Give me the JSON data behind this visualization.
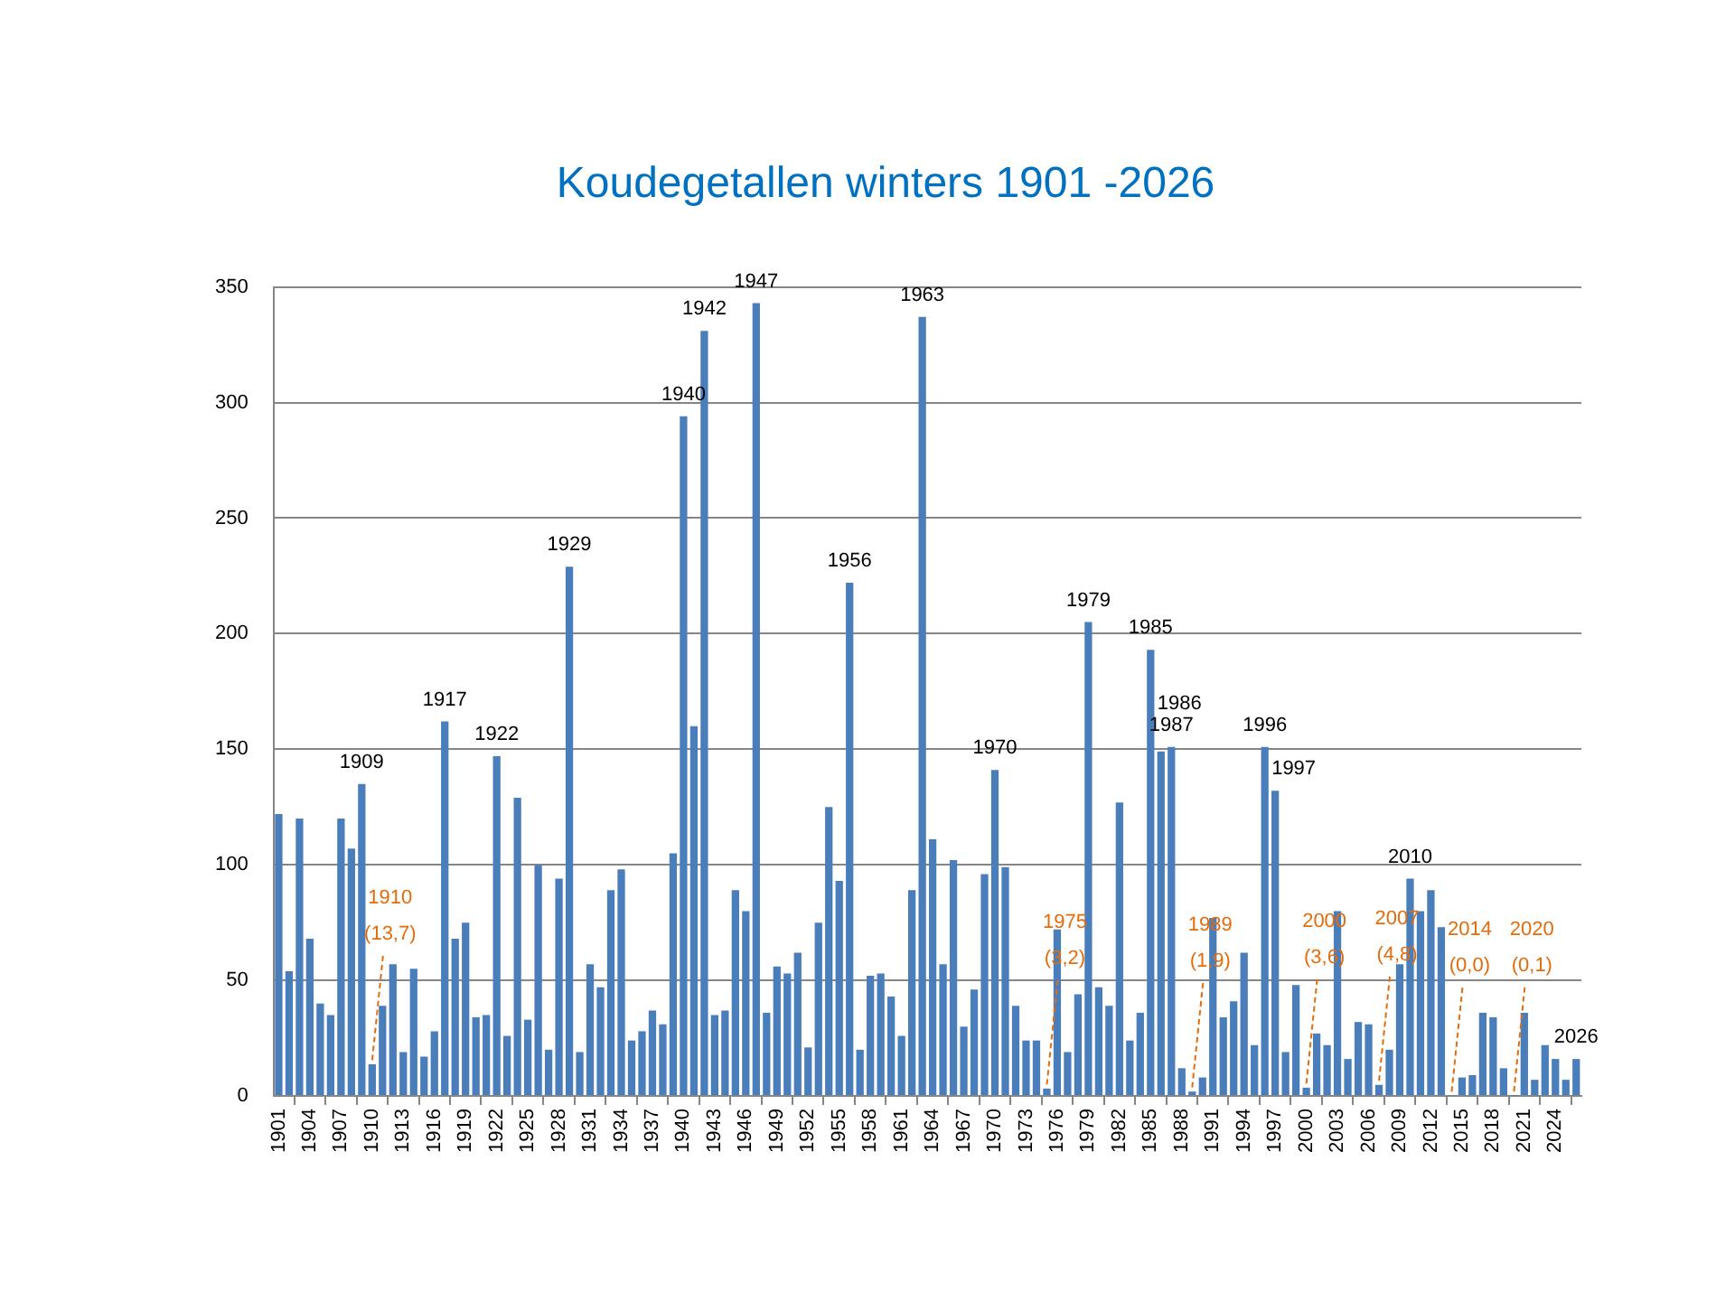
{
  "chart_data": {
    "type": "bar",
    "title": "Koudegetallen winters 1901 -2026",
    "x": [
      1901,
      1902,
      1903,
      1904,
      1905,
      1906,
      1907,
      1908,
      1909,
      1910,
      1911,
      1912,
      1913,
      1914,
      1915,
      1916,
      1917,
      1918,
      1919,
      1920,
      1921,
      1922,
      1923,
      1924,
      1925,
      1926,
      1927,
      1928,
      1929,
      1930,
      1931,
      1932,
      1933,
      1934,
      1935,
      1936,
      1937,
      1938,
      1939,
      1940,
      1941,
      1942,
      1943,
      1944,
      1945,
      1946,
      1947,
      1948,
      1949,
      1950,
      1951,
      1952,
      1953,
      1954,
      1955,
      1956,
      1957,
      1958,
      1959,
      1960,
      1961,
      1962,
      1963,
      1964,
      1965,
      1966,
      1967,
      1968,
      1969,
      1970,
      1971,
      1972,
      1973,
      1974,
      1975,
      1976,
      1977,
      1978,
      1979,
      1980,
      1981,
      1982,
      1983,
      1984,
      1985,
      1986,
      1987,
      1988,
      1989,
      1990,
      1991,
      1992,
      1993,
      1994,
      1995,
      1996,
      1997,
      1998,
      1999,
      2000,
      2001,
      2002,
      2003,
      2004,
      2005,
      2006,
      2007,
      2008,
      2009,
      2010,
      2011,
      2012,
      2013,
      2014,
      2015,
      2016,
      2017,
      2018,
      2019,
      2020,
      2021,
      2022,
      2023,
      2024,
      2025,
      2026
    ],
    "values": [
      122,
      54,
      120,
      68,
      40,
      35,
      120,
      107,
      135,
      13.7,
      39,
      57,
      19,
      55,
      17,
      28,
      162,
      68,
      75,
      34,
      35,
      147,
      26,
      129,
      33,
      100,
      20,
      94,
      229,
      19,
      57,
      47,
      89,
      98,
      24,
      28,
      37,
      31,
      105,
      294,
      160,
      331,
      35,
      37,
      89,
      80,
      343,
      36,
      56,
      53,
      62,
      21,
      75,
      125,
      93,
      222,
      20,
      52,
      53,
      43,
      26,
      89,
      337,
      111,
      57,
      102,
      30,
      46,
      96,
      141,
      99,
      39,
      24,
      24,
      3.2,
      72,
      19,
      44,
      205,
      47,
      39,
      127,
      24,
      36,
      193,
      149,
      151,
      12,
      1.9,
      8,
      77,
      34,
      41,
      62,
      22,
      151,
      132,
      19,
      48,
      3.6,
      27,
      22,
      80,
      16,
      32,
      31,
      4.8,
      20,
      57,
      94,
      80,
      89,
      73,
      0,
      8,
      9,
      36,
      34,
      12,
      0.1,
      36,
      7,
      22,
      16,
      7,
      16
    ],
    "value_labels": [
      null,
      null,
      null,
      null,
      null,
      null,
      null,
      null,
      null,
      "(13,7)",
      null,
      null,
      null,
      null,
      null,
      null,
      null,
      null,
      null,
      null,
      null,
      null,
      null,
      null,
      null,
      null,
      null,
      null,
      null,
      null,
      null,
      null,
      null,
      null,
      null,
      null,
      null,
      null,
      null,
      null,
      null,
      null,
      null,
      null,
      null,
      null,
      null,
      null,
      null,
      null,
      null,
      null,
      null,
      null,
      null,
      null,
      null,
      null,
      null,
      null,
      null,
      null,
      null,
      null,
      null,
      null,
      null,
      null,
      null,
      null,
      null,
      null,
      null,
      null,
      "(3,2)",
      null,
      null,
      null,
      null,
      null,
      null,
      null,
      null,
      null,
      null,
      null,
      null,
      null,
      "(1,9)",
      null,
      null,
      null,
      null,
      null,
      null,
      null,
      null,
      null,
      null,
      "(3,6)",
      null,
      null,
      null,
      null,
      null,
      null,
      "(4,8)",
      null,
      null,
      null,
      null,
      null,
      null,
      "(0,0)",
      null,
      null,
      null,
      null,
      null,
      "(0,1)",
      null,
      null,
      null,
      null,
      null,
      null
    ],
    "color": "#4a7ebb",
    "xlim": [
      1900.5,
      2026.5
    ],
    "xticks": [
      1901,
      1904,
      1907,
      1910,
      1913,
      1916,
      1919,
      1922,
      1925,
      1928,
      1931,
      1934,
      1937,
      1940,
      1943,
      1946,
      1949,
      1952,
      1955,
      1958,
      1961,
      1964,
      1967,
      1970,
      1973,
      1976,
      1979,
      1982,
      1985,
      1988,
      1991,
      1994,
      1997,
      2000,
      2003,
      2006,
      2009,
      2012,
      2015,
      2018,
      2021,
      2024
    ],
    "ylim": [
      0,
      350
    ],
    "yticks": [
      0,
      50,
      100,
      150,
      200,
      250,
      300,
      350
    ],
    "grid": "y",
    "legend": false,
    "annotations": [
      {
        "text": "1909",
        "x": 1909,
        "y": 135
      },
      "1910",
      {
        "text": "1917",
        "x": 1917,
        "y": 162
      },
      {
        "text": "1922",
        "x": 1922,
        "y": 147
      },
      {
        "text": "1929",
        "x": 1929,
        "y": 229
      },
      {
        "text": "1940",
        "x": 1940,
        "y": 294
      },
      {
        "text": "1942",
        "x": 1942,
        "y": 331
      },
      {
        "text": "1947",
        "x": 1947,
        "y": 343
      },
      {
        "text": "1956",
        "x": 1956,
        "y": 222
      },
      {
        "text": "1963",
        "x": 1963,
        "y": 337
      },
      {
        "text": "1970",
        "x": 1970,
        "y": 141
      },
      "1975",
      {
        "text": "1979",
        "x": 1979,
        "y": 205
      },
      {
        "text": "1985",
        "x": 1985,
        "y": 193
      },
      {
        "text": "1986",
        "x": 1986,
        "y": 149
      },
      {
        "text": "1987",
        "x": 1987,
        "y": 151
      },
      "1989",
      {
        "text": "1996",
        "x": 1996,
        "y": 151
      },
      {
        "text": "1997",
        "x": 1997,
        "y": 132
      },
      "2000",
      "2007",
      {
        "text": "2010",
        "x": 2010,
        "y": 94
      },
      "2014",
      "2020",
      {
        "text": "2026",
        "x": 2026,
        "y": 16
      }
    ]
  }
}
